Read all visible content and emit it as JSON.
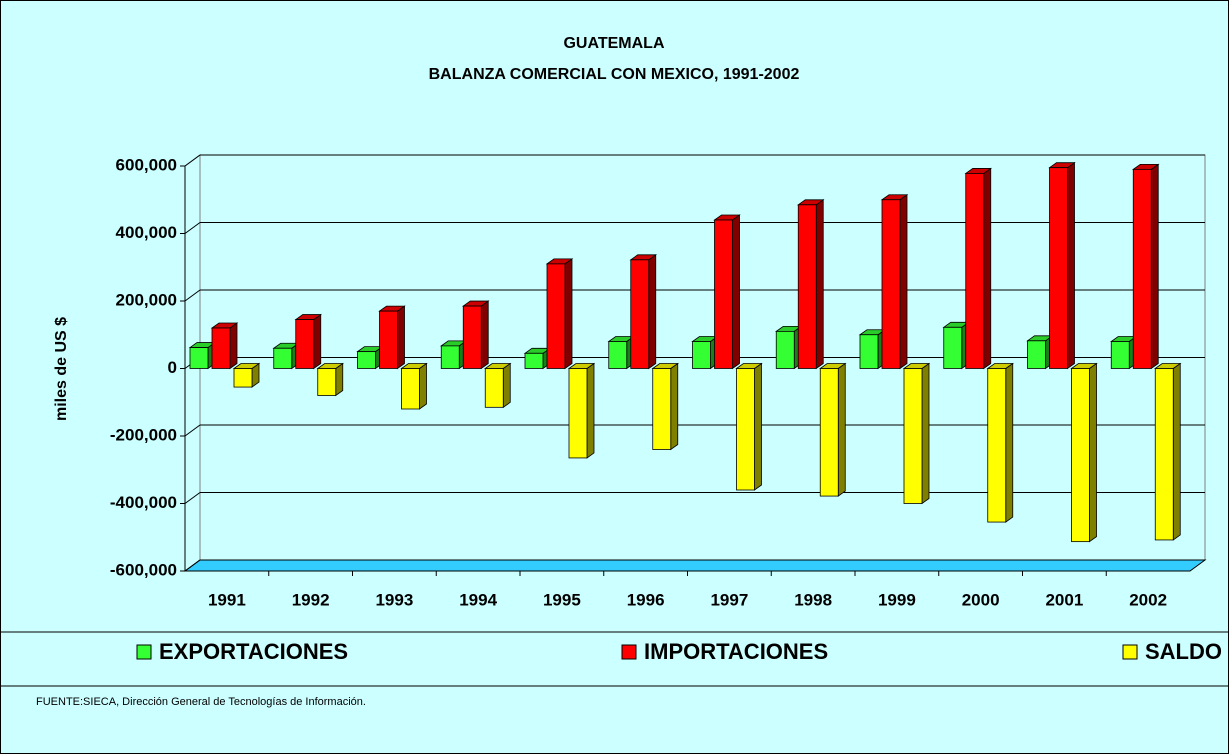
{
  "chart_data": {
    "type": "bar",
    "title": "GUATEMALA",
    "subtitle": "BALANZA COMERCIAL CON MEXICO, 1991-2002",
    "y_label": "miles de US $",
    "categories": [
      "1991",
      "1992",
      "1993",
      "1994",
      "1995",
      "1996",
      "1997",
      "1998",
      "1999",
      "2000",
      "2001",
      "2002"
    ],
    "series": [
      {
        "name": "EXPORTACIONES",
        "color": "#33ff33",
        "values": [
          62000,
          60000,
          50000,
          67000,
          45000,
          80000,
          80000,
          110000,
          100000,
          122000,
          82000,
          80000
        ]
      },
      {
        "name": "IMPORTACIONES",
        "color": "#ff0000",
        "values": [
          120000,
          145000,
          170000,
          185000,
          310000,
          322000,
          440000,
          485000,
          500000,
          578000,
          595000,
          590000
        ]
      },
      {
        "name": "SALDO",
        "color": "#ffff00",
        "values": [
          -55000,
          -80000,
          -120000,
          -115000,
          -265000,
          -240000,
          -360000,
          -378000,
          -400000,
          -455000,
          -513000,
          -508000
        ]
      }
    ],
    "ylim": [
      -600000,
      600000
    ],
    "yticks": [
      {
        "value": -600000,
        "label": "-600,000"
      },
      {
        "value": -400000,
        "label": "-400,000"
      },
      {
        "value": -200000,
        "label": "-200,000"
      },
      0,
      {
        "value": 200000,
        "label": "200,000"
      },
      {
        "value": 400000,
        "label": "400,000"
      },
      {
        "value": 600000,
        "label": "600,000"
      }
    ],
    "grid": true,
    "legend": "bottom",
    "source": "FUENTE:SIECA, Dirección General de Tecnologías de Información."
  }
}
